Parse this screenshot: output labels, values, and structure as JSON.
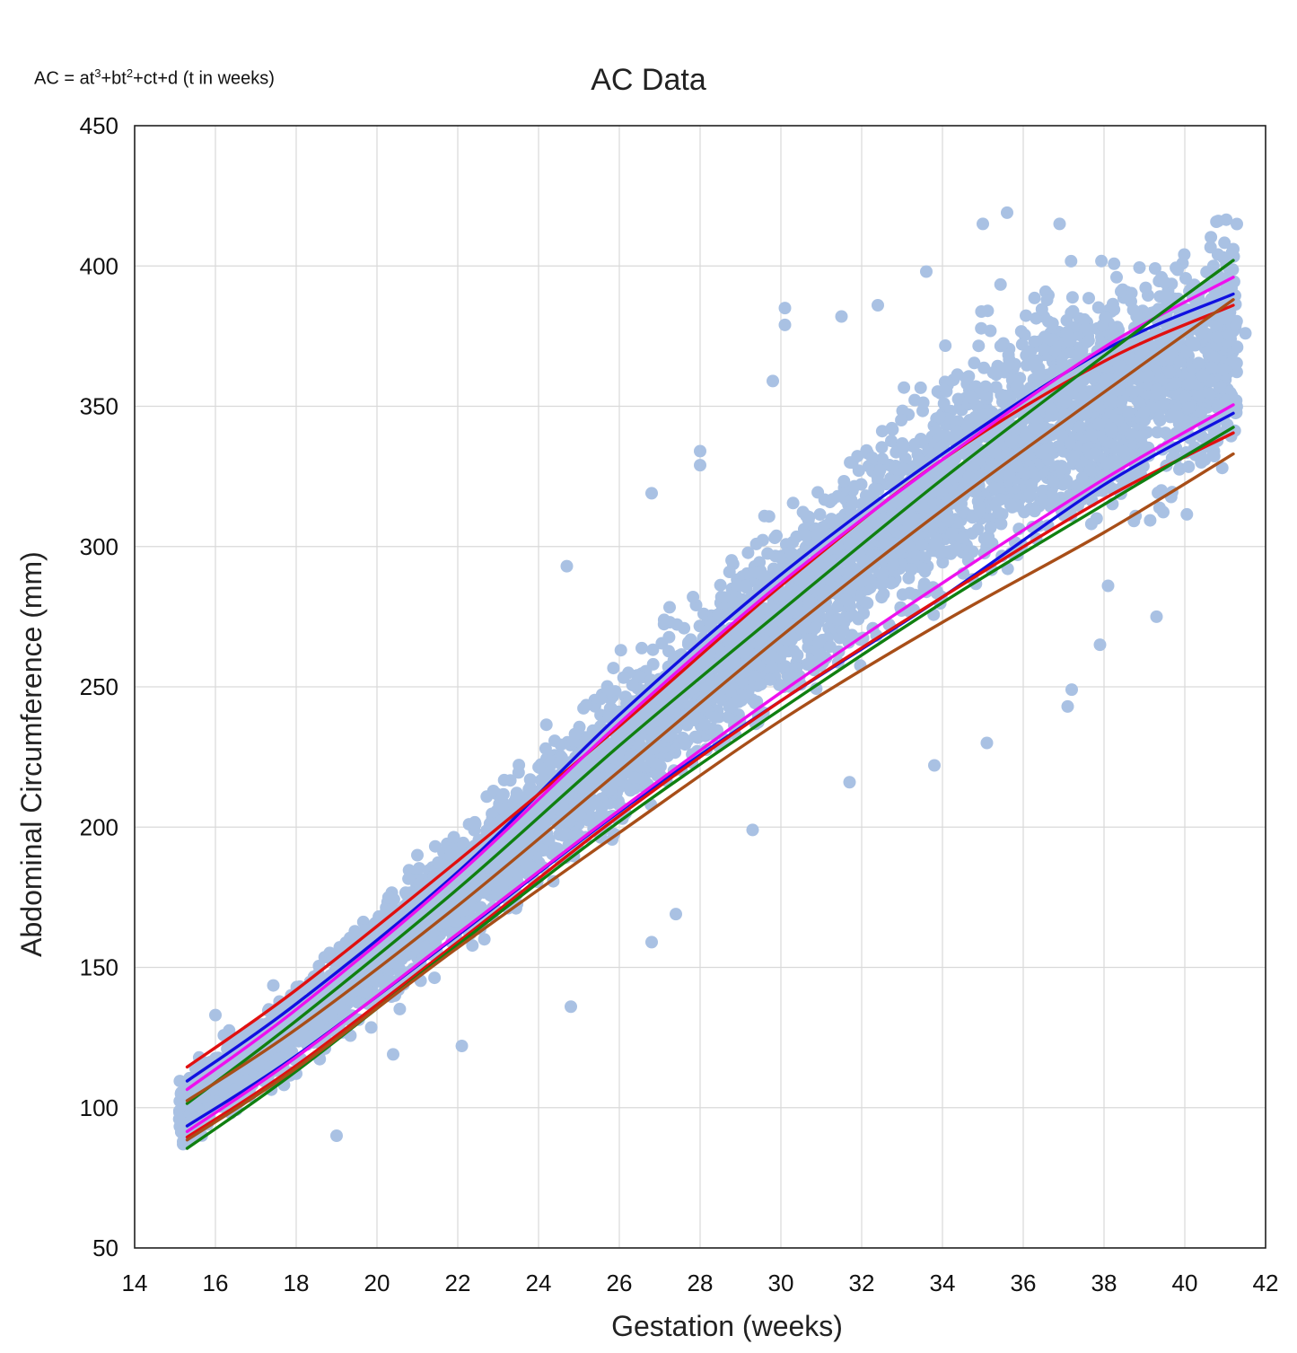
{
  "chart_data": {
    "type": "scatter",
    "title": "AC Data",
    "annotation": {
      "prefix": "AC = at",
      "sup1": "3",
      "mid1": "+bt",
      "sup2": "2",
      "suffix": "+ct+d (t in weeks)"
    },
    "xlabel": "Gestation (weeks)",
    "ylabel": "Abdominal Circumference (mm)",
    "xlim": [
      14,
      42
    ],
    "ylim": [
      50,
      450
    ],
    "xticks": [
      14,
      16,
      18,
      20,
      22,
      24,
      26,
      28,
      30,
      32,
      34,
      36,
      38,
      40,
      42
    ],
    "yticks": [
      50,
      100,
      150,
      200,
      250,
      300,
      350,
      400,
      450
    ],
    "grid": true,
    "legend": "none",
    "point_color": "#a9c1e3",
    "scatter_band": {
      "x": [
        15,
        17,
        20,
        24,
        28,
        32,
        36,
        41.2
      ],
      "center": [
        98,
        118,
        152,
        203,
        253,
        300,
        343,
        370
      ],
      "sd": [
        5.5,
        6.5,
        8,
        10,
        12,
        15,
        18,
        20
      ]
    },
    "outliers": [
      {
        "x": 24.7,
        "y": 293
      },
      {
        "x": 26.8,
        "y": 319
      },
      {
        "x": 29.8,
        "y": 359
      },
      {
        "x": 30.1,
        "y": 385
      },
      {
        "x": 30.1,
        "y": 379
      },
      {
        "x": 31.5,
        "y": 382
      },
      {
        "x": 32.4,
        "y": 386
      },
      {
        "x": 33.6,
        "y": 398
      },
      {
        "x": 35.0,
        "y": 415
      },
      {
        "x": 35.6,
        "y": 419
      },
      {
        "x": 36.9,
        "y": 415
      },
      {
        "x": 19.0,
        "y": 90
      },
      {
        "x": 22.1,
        "y": 122
      },
      {
        "x": 24.8,
        "y": 136
      },
      {
        "x": 26.8,
        "y": 159
      },
      {
        "x": 27.4,
        "y": 169
      },
      {
        "x": 35.1,
        "y": 230
      },
      {
        "x": 37.1,
        "y": 243
      },
      {
        "x": 37.2,
        "y": 249
      },
      {
        "x": 37.9,
        "y": 265
      },
      {
        "x": 39.3,
        "y": 275
      },
      {
        "x": 38.1,
        "y": 286
      },
      {
        "x": 41.5,
        "y": 376
      },
      {
        "x": 41.2,
        "y": 406
      },
      {
        "x": 21.0,
        "y": 190
      },
      {
        "x": 28.0,
        "y": 334
      },
      {
        "x": 28.0,
        "y": 329
      },
      {
        "x": 29.3,
        "y": 199
      },
      {
        "x": 31.7,
        "y": 216
      },
      {
        "x": 33.8,
        "y": 222
      },
      {
        "x": 20.4,
        "y": 119
      },
      {
        "x": 16.0,
        "y": 133
      },
      {
        "x": 15.2,
        "y": 87
      }
    ],
    "series": [
      {
        "color": "#1010e0",
        "x": [
          15.3,
          18,
          22,
          26,
          30,
          34,
          38,
          41.2
        ],
        "y": [
          109.5,
          137,
          184,
          240,
          290,
          333,
          370,
          390
        ]
      },
      {
        "color": "#1010e0",
        "x": [
          15.3,
          18,
          22,
          26,
          30,
          34,
          38,
          41.2
        ],
        "y": [
          93.5,
          118.5,
          161.5,
          205.5,
          245,
          282,
          322,
          347.5
        ]
      },
      {
        "color": "#e01010",
        "x": [
          15.3,
          18,
          22,
          26,
          30,
          34,
          38,
          41.2
        ],
        "y": [
          114.5,
          142,
          188,
          236,
          286,
          331,
          366,
          386
        ]
      },
      {
        "color": "#e01010",
        "x": [
          15.3,
          18,
          22,
          26,
          30,
          34,
          38,
          41.2
        ],
        "y": [
          89.5,
          115,
          159,
          204,
          245,
          282,
          317,
          340.5
        ]
      },
      {
        "color": "#ee10ee",
        "x": [
          15.3,
          18,
          22,
          26,
          30,
          34,
          38,
          41.2
        ],
        "y": [
          106.5,
          135,
          183,
          237,
          287,
          331,
          371,
          396
        ]
      },
      {
        "color": "#ee10ee",
        "x": [
          15.3,
          18,
          22,
          26,
          30,
          34,
          38,
          41.2
        ],
        "y": [
          91.5,
          118,
          162,
          206,
          248,
          287,
          324,
          350.5
        ]
      },
      {
        "color": "#108010",
        "x": [
          15.3,
          18,
          22,
          26,
          30,
          34,
          38,
          41.2
        ],
        "y": [
          101.5,
          131,
          178,
          229,
          277,
          324,
          368,
          402
        ]
      },
      {
        "color": "#108010",
        "x": [
          15.3,
          18,
          22,
          26,
          30,
          34,
          38,
          41.2
        ],
        "y": [
          85.5,
          113,
          158,
          202,
          242,
          280,
          315,
          342.5
        ]
      },
      {
        "color": "#a84e18",
        "x": [
          15.3,
          18,
          22,
          26,
          30,
          34,
          38,
          41.2
        ],
        "y": [
          102.5,
          128,
          172,
          220,
          268,
          313,
          355,
          388
        ]
      },
      {
        "color": "#a84e18",
        "x": [
          15.3,
          18,
          22,
          26,
          30,
          34,
          38,
          41.2
        ],
        "y": [
          88.5,
          114,
          157,
          198,
          238,
          273,
          305,
          333
        ]
      }
    ]
  }
}
